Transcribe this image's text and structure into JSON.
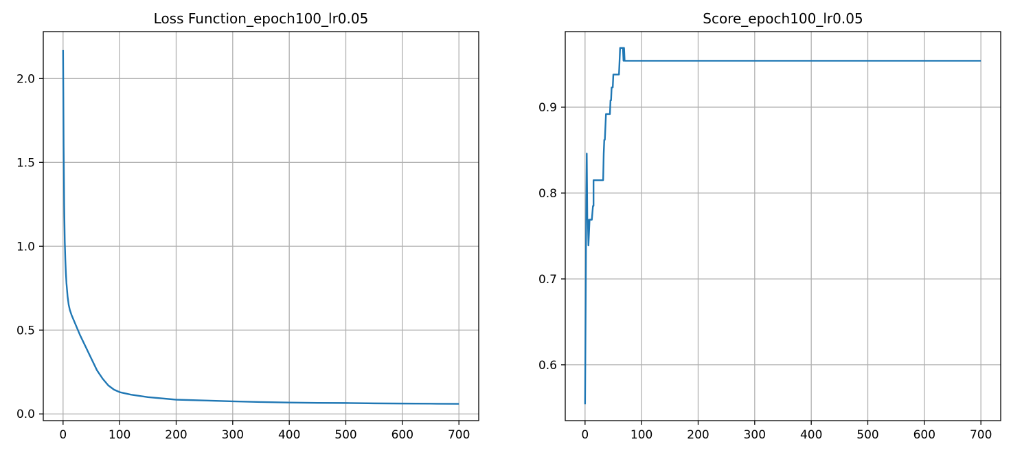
{
  "chart_data": [
    {
      "type": "line",
      "title": "Loss Function_epoch100_lr0.05",
      "xlabel": "",
      "ylabel": "",
      "xlim": [
        -35,
        735
      ],
      "ylim": [
        -0.04,
        2.28
      ],
      "xticks": [
        0,
        100,
        200,
        300,
        400,
        500,
        600,
        700
      ],
      "yticks": [
        0.0,
        0.5,
        1.0,
        1.5,
        2.0
      ],
      "ytick_labels": [
        "0.0",
        "0.5",
        "1.0",
        "1.5",
        "2.0"
      ],
      "grid": true,
      "series": [
        {
          "color": "#1f77b4",
          "x": [
            0,
            1,
            2,
            3,
            4,
            5,
            6,
            8,
            10,
            12,
            15,
            20,
            25,
            30,
            40,
            50,
            60,
            70,
            80,
            90,
            100,
            120,
            150,
            200,
            250,
            300,
            350,
            400,
            450,
            500,
            550,
            600,
            650,
            700
          ],
          "y": [
            2.17,
            1.6,
            1.25,
            1.03,
            0.92,
            0.84,
            0.78,
            0.7,
            0.65,
            0.62,
            0.59,
            0.55,
            0.51,
            0.47,
            0.4,
            0.33,
            0.26,
            0.21,
            0.17,
            0.145,
            0.13,
            0.115,
            0.1,
            0.085,
            0.08,
            0.075,
            0.071,
            0.068,
            0.066,
            0.065,
            0.063,
            0.062,
            0.061,
            0.06
          ]
        }
      ]
    },
    {
      "type": "line",
      "title": "Score_epoch100_lr0.05",
      "xlabel": "",
      "ylabel": "",
      "xlim": [
        -35,
        735
      ],
      "ylim": [
        0.535,
        0.988
      ],
      "xticks": [
        0,
        100,
        200,
        300,
        400,
        500,
        600,
        700
      ],
      "yticks": [
        0.6,
        0.7,
        0.8,
        0.9
      ],
      "ytick_labels": [
        "0.6",
        "0.7",
        "0.8",
        "0.9"
      ],
      "grid": true,
      "series": [
        {
          "color": "#1f77b4",
          "x": [
            0,
            1,
            2,
            3,
            4,
            5,
            6,
            7,
            8,
            9,
            10,
            11,
            12,
            13,
            14,
            15,
            15,
            20,
            25,
            30,
            32,
            33,
            34,
            35,
            36,
            37,
            38,
            39,
            40,
            41,
            44,
            45,
            46,
            47,
            48,
            49,
            50,
            52,
            53,
            55,
            60,
            62,
            63,
            64,
            65,
            66,
            67,
            68,
            68,
            69,
            70,
            700
          ],
          "y": [
            0.554,
            0.66,
            0.77,
            0.846,
            0.77,
            0.769,
            0.739,
            0.754,
            0.769,
            0.769,
            0.769,
            0.769,
            0.769,
            0.777,
            0.785,
            0.785,
            0.815,
            0.815,
            0.815,
            0.815,
            0.815,
            0.846,
            0.862,
            0.862,
            0.877,
            0.892,
            0.892,
            0.892,
            0.892,
            0.892,
            0.892,
            0.908,
            0.908,
            0.923,
            0.923,
            0.923,
            0.938,
            0.938,
            0.938,
            0.938,
            0.938,
            0.969,
            0.969,
            0.969,
            0.969,
            0.969,
            0.969,
            0.954,
            0.969,
            0.969,
            0.954,
            0.954
          ]
        }
      ]
    }
  ]
}
